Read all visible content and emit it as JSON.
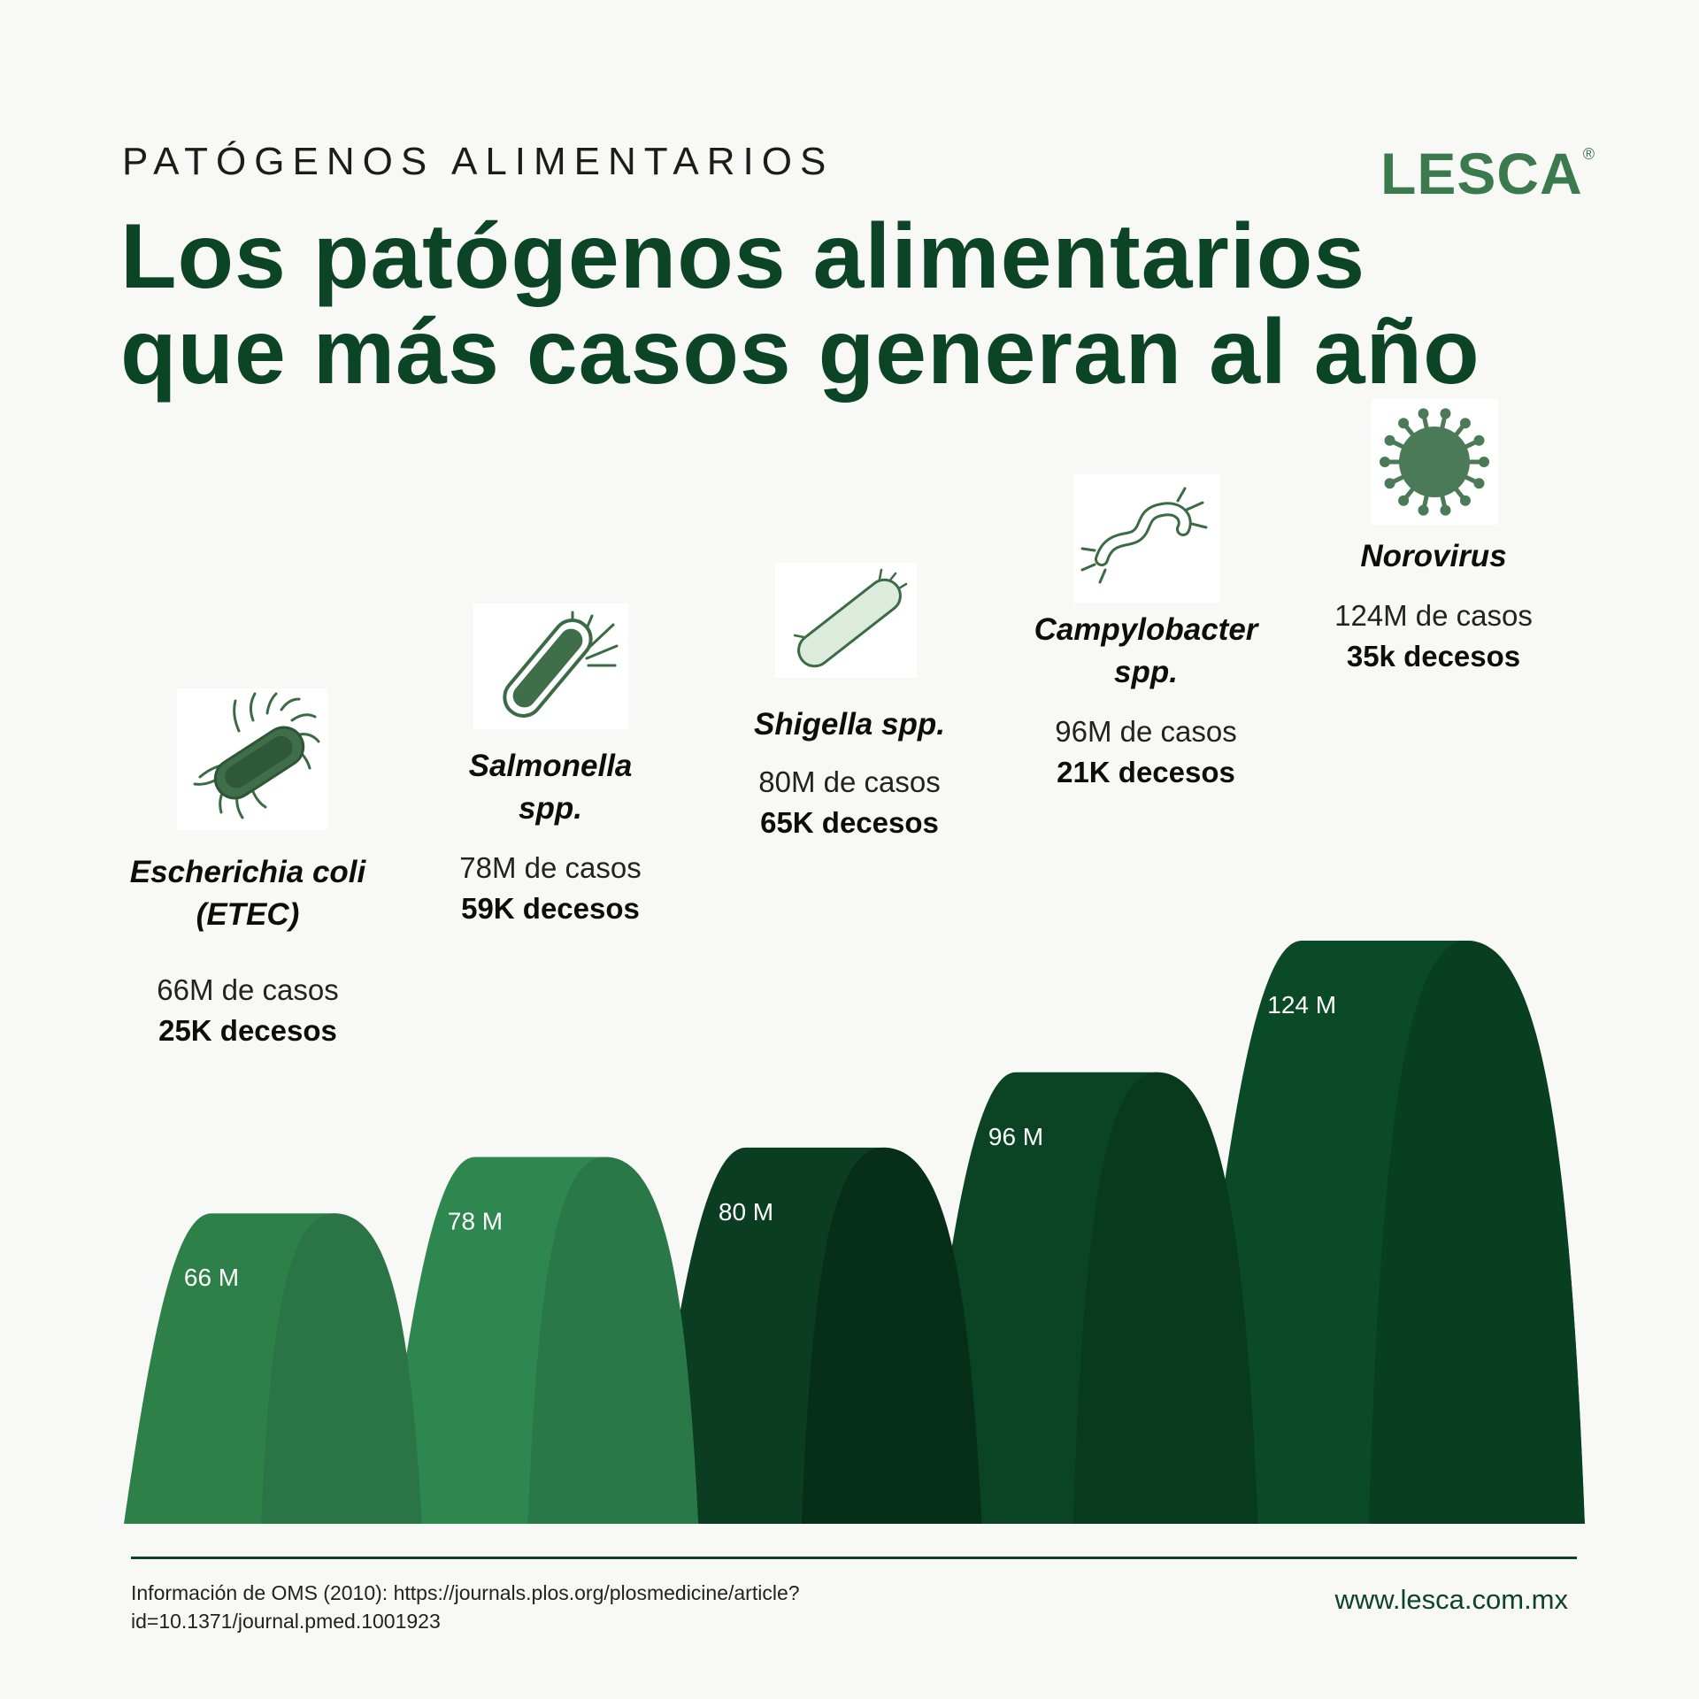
{
  "header": {
    "kicker": "PATÓGENOS ALIMENTARIOS",
    "title_line1": "Los patógenos alimentarios",
    "title_line2": "que más casos generan al año",
    "logo": "LESCA",
    "logo_mark": "®"
  },
  "pathogens": [
    {
      "name1": "Escherichia coli",
      "name2": "(ETEC)",
      "cases": "66M de casos",
      "deaths": "25K decesos",
      "icon": "rod-bacterium-flagella-icon"
    },
    {
      "name1": "Salmonella",
      "name2": "spp.",
      "cases": "78M de casos",
      "deaths": "59K decesos",
      "icon": "rod-bacterium-polar-flagella-icon"
    },
    {
      "name1": "Shigella spp.",
      "name2": "",
      "cases": "80M de casos",
      "deaths": "65K decesos",
      "icon": "light-rod-bacterium-icon"
    },
    {
      "name1": "Campylobacter",
      "name2": "spp.",
      "cases": "96M de casos",
      "deaths": "21K decesos",
      "icon": "spiral-bacterium-icon"
    },
    {
      "name1": "Norovirus",
      "name2": "",
      "cases": "124M de casos",
      "deaths": "35k decesos",
      "icon": "virus-icon"
    }
  ],
  "chart_data": {
    "type": "area",
    "categories": [
      "Escherichia coli (ETEC)",
      "Salmonella spp.",
      "Shigella spp.",
      "Campylobacter spp.",
      "Norovirus"
    ],
    "values": [
      66,
      78,
      80,
      96,
      124
    ],
    "labels": [
      "66 M",
      "78 M",
      "80 M",
      "96 M",
      "124 M"
    ],
    "colors": [
      "#2e8049",
      "#2f8750",
      "#0a3d21",
      "#0a4424",
      "#0b4a27"
    ]
  },
  "footer": {
    "source_line1": "Información de OMS (2010): https://journals.plos.org/plosmedicine/article?",
    "source_line2": "id=10.1371/journal.pmed.1001923",
    "website": "www.lesca.com.mx"
  }
}
